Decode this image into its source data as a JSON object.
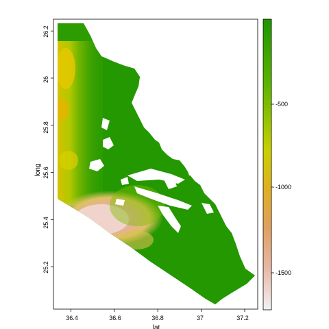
{
  "map": {
    "xlabel": "lat",
    "ylabel": "long",
    "x_ticks": [
      "36.4",
      "36.6",
      "36.8",
      "37",
      "37.2"
    ],
    "x_tick_values": [
      36.4,
      36.6,
      36.8,
      37.0,
      37.2
    ],
    "y_ticks": [
      "25.2",
      "25.4",
      "25.6",
      "25.8",
      "26",
      "26.2"
    ],
    "y_tick_values": [
      25.2,
      25.4,
      25.6,
      25.8,
      26.0,
      26.2
    ],
    "x_range": [
      36.32,
      37.26
    ],
    "y_range": [
      25.02,
      26.25
    ]
  },
  "colorbar": {
    "tick_labels": [
      "-500",
      "-1000",
      "-1500"
    ],
    "tick_values": [
      -500,
      -1000,
      -1500
    ],
    "range": [
      -1720,
      -20
    ],
    "colors": {
      "top": "#1e9600",
      "mid_green": "#5ab400",
      "yellow": "#d8d000",
      "orange": "#e0a040",
      "salmon": "#e8b4a8",
      "bottom": "#f2f2f2"
    }
  }
}
